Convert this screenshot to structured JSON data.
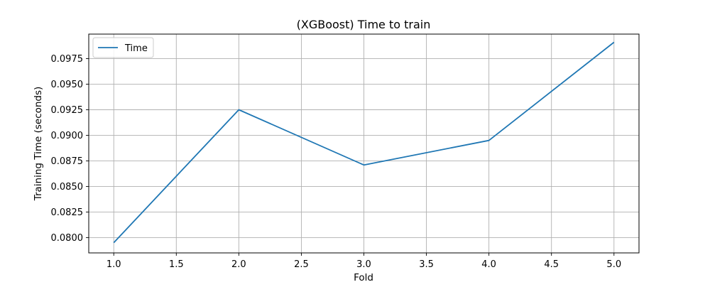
{
  "chart_data": {
    "type": "line",
    "title": "(XGBoost) Time to train",
    "xlabel": "Fold",
    "ylabel": "Training Time (seconds)",
    "x": [
      1,
      2,
      3,
      4,
      5
    ],
    "series": [
      {
        "name": "Time",
        "color": "#1f77b4",
        "values": [
          0.0795,
          0.0925,
          0.0871,
          0.0895,
          0.0991
        ]
      }
    ],
    "xlim": [
      0.8,
      5.2
    ],
    "ylim": [
      0.0785,
      0.0999
    ],
    "x_ticks": [
      1.0,
      1.5,
      2.0,
      2.5,
      3.0,
      3.5,
      4.0,
      4.5,
      5.0
    ],
    "x_tick_labels": [
      "1.0",
      "1.5",
      "2.0",
      "2.5",
      "3.0",
      "3.5",
      "4.0",
      "4.5",
      "5.0"
    ],
    "y_ticks": [
      0.08,
      0.0825,
      0.085,
      0.0875,
      0.09,
      0.0925,
      0.095,
      0.0975
    ],
    "y_tick_labels": [
      "0.0800",
      "0.0825",
      "0.0850",
      "0.0875",
      "0.0900",
      "0.0925",
      "0.0950",
      "0.0975"
    ],
    "grid": true,
    "legend_position": "top-left"
  }
}
